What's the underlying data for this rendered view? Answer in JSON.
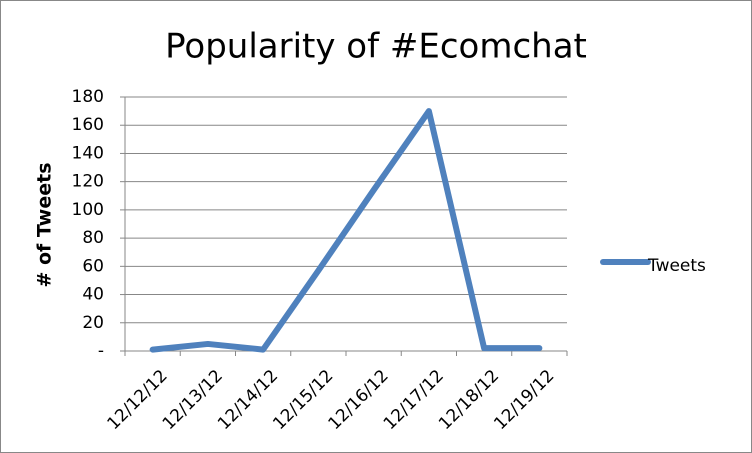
{
  "chart_data": {
    "type": "line",
    "title": "Popularity of #Ecomchat",
    "y_label": "# of Tweets",
    "categories": [
      "12/12/12",
      "12/13/12",
      "12/14/12",
      "12/15/12",
      "12/16/12",
      "12/17/12",
      "12/18/12",
      "12/19/12"
    ],
    "series": [
      {
        "name": "Tweets",
        "color": "#4f81bd",
        "values": [
          1,
          5,
          1,
          57,
          114,
          170,
          2,
          2
        ]
      }
    ],
    "ylim": [
      0,
      180
    ],
    "yticks": [
      {
        "value": 0,
        "label": "-"
      },
      20,
      40,
      60,
      80,
      100,
      120,
      140,
      160,
      180
    ],
    "grid": true,
    "legend": "right"
  }
}
